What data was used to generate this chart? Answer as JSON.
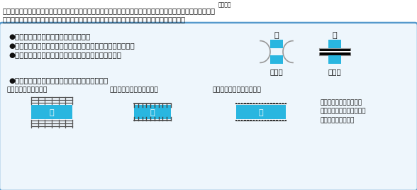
{
  "bg_color": "#ffffff",
  "box_bg": "#eef6fc",
  "box_border": "#5599cc",
  "cyan_color": "#29b6e0",
  "dark_color": "#111111",
  "gray_color": "#777777",
  "top_text1": "ちなみに、川のまわりには、「土（の）がけ」・「土堤（堤防）」・「擁壁（護岸）」などが多く見られます。",
  "top_text2": "これらは、川の両側を高くしたりすることで、洪水を防いだりするために建設されたものです。",
  "top_ruby": "ようへき",
  "bullet1": "●高いところから低いところへ流れる。",
  "bullet2": "●下流に行くほど（低いところに行くほど）、幅は広くなる。",
  "bullet3": "●途中に「橋」を表す地図記号が見られる場合が多い。",
  "bullet4": "●次のような地形図記号が見られることも多い。",
  "label_douro": "道路橋",
  "label_tetsudo": "鉄道橋",
  "label_tsuchi": "〈〈　土のがけ　〉〉",
  "label_dote": "〈〈　土堤（堤防）　〉〉",
  "label_yoheki": "〈〈　擁壁（護岸）　〉〉",
  "note_text": "擁壁は河川の両側をコン\nクリートで固めたりして強\n化した堤防の一種。",
  "kawa_char": "川",
  "white": "#ffffff"
}
